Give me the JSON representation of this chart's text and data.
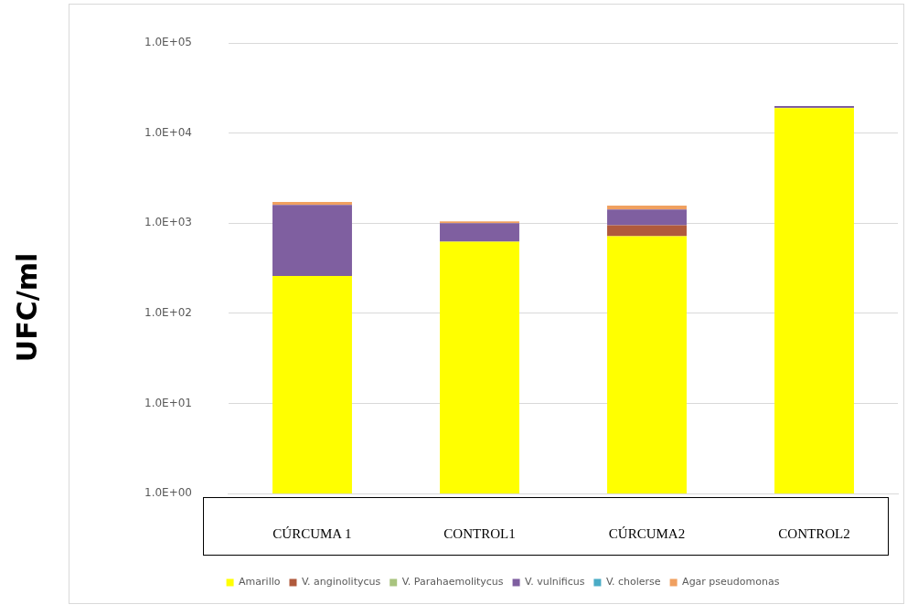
{
  "chart_data": {
    "type": "bar",
    "stacked": true,
    "log": "y",
    "ylabel": "UFC/ml",
    "categories": [
      "CÚRCUMA 1",
      "CONTROL1",
      "CÚRCUMA2",
      "CONTROL2"
    ],
    "series": [
      {
        "name": "Amarillo",
        "color": "#ffff00",
        "values": [
          260,
          625,
          720,
          19000
        ]
      },
      {
        "name": "V. anginolitycus",
        "color": "#b05a3c",
        "values": [
          null,
          null,
          230,
          null
        ]
      },
      {
        "name": "V. Parahaemolitycus",
        "color": "#a9c47f",
        "values": [
          null,
          null,
          null,
          null
        ]
      },
      {
        "name": "V. vulnificus",
        "color": "#7f5fa0",
        "values": [
          1340,
          375,
          475,
          1000
        ]
      },
      {
        "name": "V. cholerse",
        "color": "#4bacc6",
        "values": [
          null,
          null,
          null,
          null
        ]
      },
      {
        "name": "Agar pseudomonas",
        "color": "#f0a060",
        "values": [
          120,
          50,
          145,
          null
        ]
      }
    ],
    "ylim": [
      1,
      100000
    ],
    "yticks": [
      {
        "value": 1,
        "label": "1.0E+00"
      },
      {
        "value": 10,
        "label": "1.0E+01"
      },
      {
        "value": 100,
        "label": "1.0E+02"
      },
      {
        "value": 1000,
        "label": "1.0E+03"
      },
      {
        "value": 10000,
        "label": "1.0E+04"
      },
      {
        "value": 100000,
        "label": "1.0E+05"
      }
    ],
    "grid": "y",
    "legend": "bottom"
  }
}
